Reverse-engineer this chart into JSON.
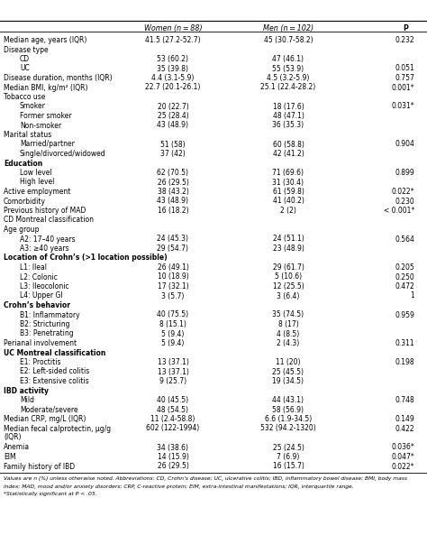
{
  "col_headers": [
    "",
    "Women (n = 88)",
    "Men (n = 102)",
    "P"
  ],
  "rows": [
    {
      "label": "Median age, years (IQR)",
      "indent": 0,
      "bold": false,
      "section": false,
      "women": "41.5 (27.2-52.7)",
      "men": "45 (30.7-58.2)",
      "p": "0.232"
    },
    {
      "label": "Disease type",
      "indent": 0,
      "bold": false,
      "section": false,
      "women": "",
      "men": "",
      "p": ""
    },
    {
      "label": "CD",
      "indent": 1,
      "bold": false,
      "section": false,
      "women": "53 (60.2)",
      "men": "47 (46.1)",
      "p": ""
    },
    {
      "label": "UC",
      "indent": 1,
      "bold": false,
      "section": false,
      "women": "35 (39.8)",
      "men": "55 (53.9)",
      "p": "0.051"
    },
    {
      "label": "Disease duration, months (IQR)",
      "indent": 0,
      "bold": false,
      "section": false,
      "women": "4.4 (3.1-5.9)",
      "men": "4.5 (3.2-5.9)",
      "p": "0.757"
    },
    {
      "label": "Median BMI, kg/m² (IQR)",
      "indent": 0,
      "bold": false,
      "section": false,
      "women": "22.7 (20.1-26.1)",
      "men": "25.1 (22.4-28.2)",
      "p": "0.001*"
    },
    {
      "label": "Tobacco use",
      "indent": 0,
      "bold": false,
      "section": false,
      "women": "",
      "men": "",
      "p": ""
    },
    {
      "label": "Smoker",
      "indent": 1,
      "bold": false,
      "section": false,
      "women": "20 (22.7)",
      "men": "18 (17.6)",
      "p": "0.031*"
    },
    {
      "label": "Former smoker",
      "indent": 1,
      "bold": false,
      "section": false,
      "women": "25 (28.4)",
      "men": "48 (47.1)",
      "p": ""
    },
    {
      "label": "Non-smoker",
      "indent": 1,
      "bold": false,
      "section": false,
      "women": "43 (48.9)",
      "men": "36 (35.3)",
      "p": ""
    },
    {
      "label": "Marital status",
      "indent": 0,
      "bold": false,
      "section": false,
      "women": "",
      "men": "",
      "p": ""
    },
    {
      "label": "Married/partner",
      "indent": 1,
      "bold": false,
      "section": false,
      "women": "51 (58)",
      "men": "60 (58.8)",
      "p": "0.904"
    },
    {
      "label": "Single/divorced/widowed",
      "indent": 1,
      "bold": false,
      "section": false,
      "women": "37 (42)",
      "men": "42 (41.2)",
      "p": ""
    },
    {
      "label": "Education",
      "indent": 0,
      "bold": true,
      "section": true,
      "women": "",
      "men": "",
      "p": ""
    },
    {
      "label": "Low level",
      "indent": 1,
      "bold": false,
      "section": false,
      "women": "62 (70.5)",
      "men": "71 (69.6)",
      "p": "0.899"
    },
    {
      "label": "High level",
      "indent": 1,
      "bold": false,
      "section": false,
      "women": "26 (29.5)",
      "men": "31 (30.4)",
      "p": ""
    },
    {
      "label": "Active employment",
      "indent": 0,
      "bold": false,
      "section": false,
      "women": "38 (43.2)",
      "men": "61 (59.8)",
      "p": "0.022*"
    },
    {
      "label": "Comorbidity",
      "indent": 0,
      "bold": false,
      "section": false,
      "women": "43 (48.9)",
      "men": "41 (40.2)",
      "p": "0.230"
    },
    {
      "label": "Previous history of MAD",
      "indent": 0,
      "bold": false,
      "section": false,
      "women": "16 (18.2)",
      "men": "2 (2)",
      "p": "< 0.001*"
    },
    {
      "label": "CD Montreal classification",
      "indent": 0,
      "bold": false,
      "section": false,
      "women": "",
      "men": "",
      "p": ""
    },
    {
      "label": "Age group",
      "indent": 0,
      "bold": false,
      "section": false,
      "women": "",
      "men": "",
      "p": ""
    },
    {
      "label": "A2: 17–40 years",
      "indent": 1,
      "bold": false,
      "section": false,
      "women": "24 (45.3)",
      "men": "24 (51.1)",
      "p": "0.564"
    },
    {
      "label": "A3: ≥40 years",
      "indent": 1,
      "bold": false,
      "section": false,
      "women": "29 (54.7)",
      "men": "23 (48.9)",
      "p": ""
    },
    {
      "label": "Location of Crohn’s (>1 location possible)",
      "indent": 0,
      "bold": true,
      "section": true,
      "women": "",
      "men": "",
      "p": ""
    },
    {
      "label": "L1: Ileal",
      "indent": 1,
      "bold": false,
      "section": false,
      "women": "26 (49.1)",
      "men": "29 (61.7)",
      "p": "0.205"
    },
    {
      "label": "L2: Colonic",
      "indent": 1,
      "bold": false,
      "section": false,
      "women": "10 (18.9)",
      "men": "5 (10.6)",
      "p": "0.250"
    },
    {
      "label": "L3: Ileocolonic",
      "indent": 1,
      "bold": false,
      "section": false,
      "women": "17 (32.1)",
      "men": "12 (25.5)",
      "p": "0.472"
    },
    {
      "label": "L4: Upper GI",
      "indent": 1,
      "bold": false,
      "section": false,
      "women": "3 (5.7)",
      "men": "3 (6.4)",
      "p": "1"
    },
    {
      "label": "Crohn’s behavior",
      "indent": 0,
      "bold": true,
      "section": true,
      "women": "",
      "men": "",
      "p": ""
    },
    {
      "label": "B1: Inflammatory",
      "indent": 1,
      "bold": false,
      "section": false,
      "women": "40 (75.5)",
      "men": "35 (74.5)",
      "p": "0.959"
    },
    {
      "label": "B2: Stricturing",
      "indent": 1,
      "bold": false,
      "section": false,
      "women": "8 (15.1)",
      "men": "8 (17)",
      "p": ""
    },
    {
      "label": "B3: Penetrating",
      "indent": 1,
      "bold": false,
      "section": false,
      "women": "5 (9.4)",
      "men": "4 (8.5)",
      "p": ""
    },
    {
      "label": "Perianal involvement",
      "indent": 0,
      "bold": false,
      "section": false,
      "women": "5 (9.4)",
      "men": "2 (4.3)",
      "p": "0.311"
    },
    {
      "label": "UC Montreal classification",
      "indent": 0,
      "bold": true,
      "section": true,
      "women": "",
      "men": "",
      "p": ""
    },
    {
      "label": "E1: Proctitis",
      "indent": 1,
      "bold": false,
      "section": false,
      "women": "13 (37.1)",
      "men": "11 (20)",
      "p": "0.198"
    },
    {
      "label": "E2: Left-sided colitis",
      "indent": 1,
      "bold": false,
      "section": false,
      "women": "13 (37.1)",
      "men": "25 (45.5)",
      "p": ""
    },
    {
      "label": "E3: Extensive colitis",
      "indent": 1,
      "bold": false,
      "section": false,
      "women": "9 (25.7)",
      "men": "19 (34.5)",
      "p": ""
    },
    {
      "label": "IBD activity",
      "indent": 0,
      "bold": true,
      "section": true,
      "women": "",
      "men": "",
      "p": ""
    },
    {
      "label": "Mild",
      "indent": 1,
      "bold": false,
      "section": false,
      "women": "40 (45.5)",
      "men": "44 (43.1)",
      "p": "0.748"
    },
    {
      "label": "Moderate/severe",
      "indent": 1,
      "bold": false,
      "section": false,
      "women": "48 (54.5)",
      "men": "58 (56.9)",
      "p": ""
    },
    {
      "label": "Median CRP, mg/L (IQR)",
      "indent": 0,
      "bold": false,
      "section": false,
      "women": "11 (2.4-58.8)",
      "men": "6.6 (1.9-34.5)",
      "p": "0.149"
    },
    {
      "label": "Median fecal calprotectin, μg/g",
      "label2": "(IQR)",
      "indent": 0,
      "bold": false,
      "section": false,
      "women": "602 (122-1994)",
      "men": "532 (94.2-1320)",
      "p": "0.422"
    },
    {
      "label": "Anemia",
      "indent": 0,
      "bold": false,
      "section": false,
      "women": "34 (38.6)",
      "men": "25 (24.5)",
      "p": "0.036*"
    },
    {
      "label": "EIM",
      "indent": 0,
      "bold": false,
      "section": false,
      "women": "14 (15.9)",
      "men": "7 (6.9)",
      "p": "0.047*"
    },
    {
      "label": "Family history of IBD",
      "indent": 0,
      "bold": false,
      "section": false,
      "women": "26 (29.5)",
      "men": "16 (15.7)",
      "p": "0.022*"
    }
  ],
  "footnotes": [
    "Values are n (%) unless otherwise noted. Abbreviations: CD, Crohn’s disease; UC, ulcerative colitis; IBD, inflammatory bowel disease; BMI, body mass",
    "index; MAD, mood and/or anxiety disorders; CRP, C-reactive protein; EIM, extra-intestinal manifestations; IQR, interquartile range.",
    "*Statistically significant at P < .05."
  ],
  "bg_color": "#ffffff",
  "text_color": "#000000"
}
